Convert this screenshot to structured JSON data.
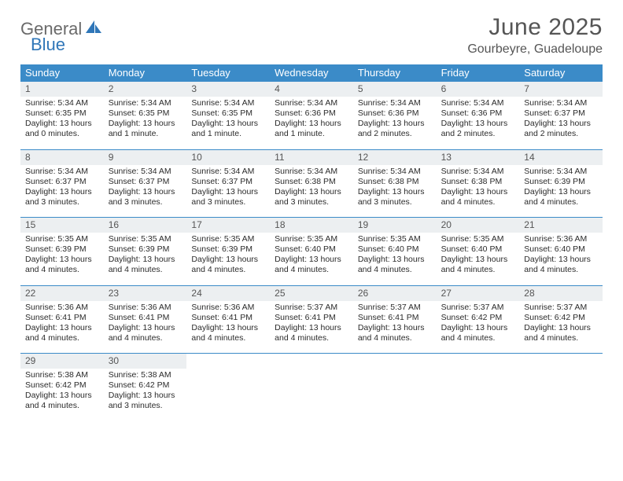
{
  "logo": {
    "word1": "General",
    "word2": "Blue"
  },
  "title": "June 2025",
  "location": "Gourbeyre, Guadeloupe",
  "colors": {
    "header_bg": "#3b8bc8",
    "week_border": "#3b8bc8",
    "daynum_bg": "#eceff1",
    "logo_gray": "#6a6a6a",
    "logo_blue": "#2f76b8"
  },
  "dow": [
    "Sunday",
    "Monday",
    "Tuesday",
    "Wednesday",
    "Thursday",
    "Friday",
    "Saturday"
  ],
  "days": [
    {
      "n": "1",
      "sr": "5:34 AM",
      "ss": "6:35 PM",
      "dl": "13 hours and 0 minutes."
    },
    {
      "n": "2",
      "sr": "5:34 AM",
      "ss": "6:35 PM",
      "dl": "13 hours and 1 minute."
    },
    {
      "n": "3",
      "sr": "5:34 AM",
      "ss": "6:35 PM",
      "dl": "13 hours and 1 minute."
    },
    {
      "n": "4",
      "sr": "5:34 AM",
      "ss": "6:36 PM",
      "dl": "13 hours and 1 minute."
    },
    {
      "n": "5",
      "sr": "5:34 AM",
      "ss": "6:36 PM",
      "dl": "13 hours and 2 minutes."
    },
    {
      "n": "6",
      "sr": "5:34 AM",
      "ss": "6:36 PM",
      "dl": "13 hours and 2 minutes."
    },
    {
      "n": "7",
      "sr": "5:34 AM",
      "ss": "6:37 PM",
      "dl": "13 hours and 2 minutes."
    },
    {
      "n": "8",
      "sr": "5:34 AM",
      "ss": "6:37 PM",
      "dl": "13 hours and 3 minutes."
    },
    {
      "n": "9",
      "sr": "5:34 AM",
      "ss": "6:37 PM",
      "dl": "13 hours and 3 minutes."
    },
    {
      "n": "10",
      "sr": "5:34 AM",
      "ss": "6:37 PM",
      "dl": "13 hours and 3 minutes."
    },
    {
      "n": "11",
      "sr": "5:34 AM",
      "ss": "6:38 PM",
      "dl": "13 hours and 3 minutes."
    },
    {
      "n": "12",
      "sr": "5:34 AM",
      "ss": "6:38 PM",
      "dl": "13 hours and 3 minutes."
    },
    {
      "n": "13",
      "sr": "5:34 AM",
      "ss": "6:38 PM",
      "dl": "13 hours and 4 minutes."
    },
    {
      "n": "14",
      "sr": "5:34 AM",
      "ss": "6:39 PM",
      "dl": "13 hours and 4 minutes."
    },
    {
      "n": "15",
      "sr": "5:35 AM",
      "ss": "6:39 PM",
      "dl": "13 hours and 4 minutes."
    },
    {
      "n": "16",
      "sr": "5:35 AM",
      "ss": "6:39 PM",
      "dl": "13 hours and 4 minutes."
    },
    {
      "n": "17",
      "sr": "5:35 AM",
      "ss": "6:39 PM",
      "dl": "13 hours and 4 minutes."
    },
    {
      "n": "18",
      "sr": "5:35 AM",
      "ss": "6:40 PM",
      "dl": "13 hours and 4 minutes."
    },
    {
      "n": "19",
      "sr": "5:35 AM",
      "ss": "6:40 PM",
      "dl": "13 hours and 4 minutes."
    },
    {
      "n": "20",
      "sr": "5:35 AM",
      "ss": "6:40 PM",
      "dl": "13 hours and 4 minutes."
    },
    {
      "n": "21",
      "sr": "5:36 AM",
      "ss": "6:40 PM",
      "dl": "13 hours and 4 minutes."
    },
    {
      "n": "22",
      "sr": "5:36 AM",
      "ss": "6:41 PM",
      "dl": "13 hours and 4 minutes."
    },
    {
      "n": "23",
      "sr": "5:36 AM",
      "ss": "6:41 PM",
      "dl": "13 hours and 4 minutes."
    },
    {
      "n": "24",
      "sr": "5:36 AM",
      "ss": "6:41 PM",
      "dl": "13 hours and 4 minutes."
    },
    {
      "n": "25",
      "sr": "5:37 AM",
      "ss": "6:41 PM",
      "dl": "13 hours and 4 minutes."
    },
    {
      "n": "26",
      "sr": "5:37 AM",
      "ss": "6:41 PM",
      "dl": "13 hours and 4 minutes."
    },
    {
      "n": "27",
      "sr": "5:37 AM",
      "ss": "6:42 PM",
      "dl": "13 hours and 4 minutes."
    },
    {
      "n": "28",
      "sr": "5:37 AM",
      "ss": "6:42 PM",
      "dl": "13 hours and 4 minutes."
    },
    {
      "n": "29",
      "sr": "5:38 AM",
      "ss": "6:42 PM",
      "dl": "13 hours and 4 minutes."
    },
    {
      "n": "30",
      "sr": "5:38 AM",
      "ss": "6:42 PM",
      "dl": "13 hours and 3 minutes."
    }
  ],
  "labels": {
    "sunrise": "Sunrise:",
    "sunset": "Sunset:",
    "daylight": "Daylight:"
  }
}
